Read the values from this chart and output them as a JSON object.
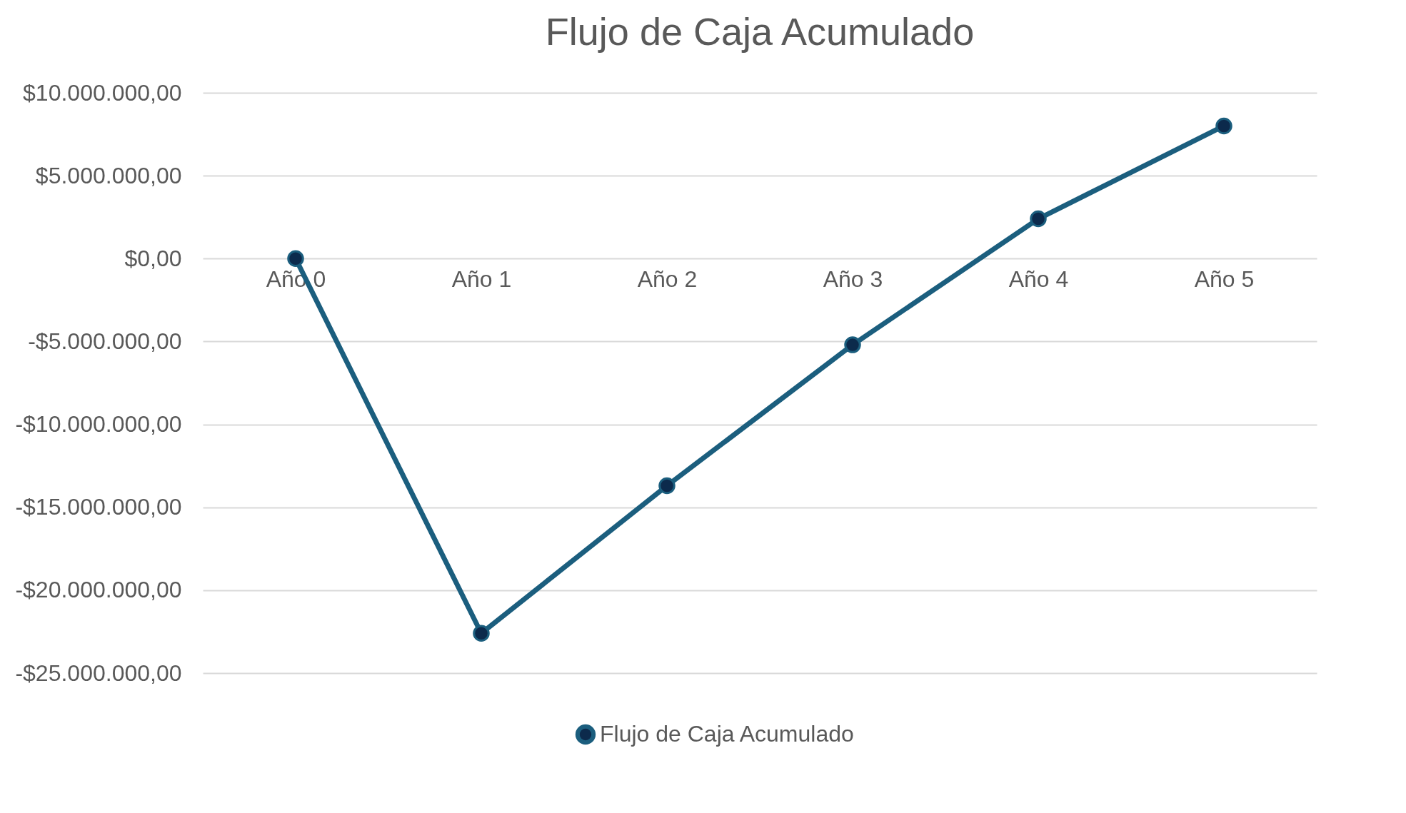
{
  "chart_data": {
    "type": "line",
    "title": "Flujo de Caja Acumulado",
    "categories": [
      "Año 0",
      "Año 1",
      "Año 2",
      "Año 3",
      "Año 4",
      "Año 5"
    ],
    "series": [
      {
        "name": "Flujo de Caja Acumulado",
        "color": "#1b5e7e",
        "values": [
          0,
          -22600000,
          -13700000,
          -5200000,
          2400000,
          8000000
        ]
      }
    ],
    "ylim": [
      -25000000,
      10000000
    ],
    "yticks": [
      {
        "value": -25000000,
        "label": "-$25.000.000,00"
      },
      {
        "value": -20000000,
        "label": "-$20.000.000,00"
      },
      {
        "value": -15000000,
        "label": "-$15.000.000,00"
      },
      {
        "value": -10000000,
        "label": "-$10.000.000,00"
      },
      {
        "value": -5000000,
        "label": "-$5.000.000,00"
      },
      {
        "value": 0,
        "label": "$0,00"
      },
      {
        "value": 5000000,
        "label": "$5.000.000,00"
      },
      {
        "value": 10000000,
        "label": "$10.000.000,00"
      }
    ],
    "grid": "y",
    "legend": "bottom",
    "marker": "circle",
    "line_style": "solid"
  }
}
